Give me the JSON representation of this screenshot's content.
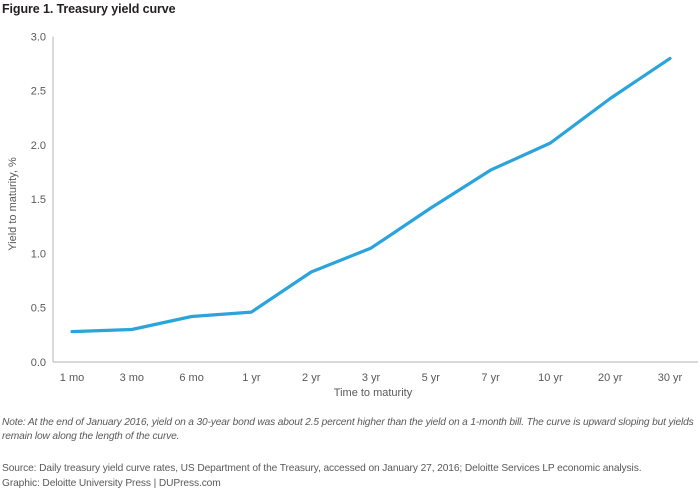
{
  "figure": {
    "title": "Figure 1. Treasury yield curve"
  },
  "chart_data": {
    "type": "line",
    "title": "Figure 1. Treasury yield curve",
    "categories": [
      "1 mo",
      "3 mo",
      "6 mo",
      "1 yr",
      "2 yr",
      "3 yr",
      "5 yr",
      "7 yr",
      "10 yr",
      "20 yr",
      "30 yr"
    ],
    "values": [
      0.28,
      0.3,
      0.42,
      0.46,
      0.83,
      1.05,
      1.42,
      1.77,
      2.02,
      2.43,
      2.8
    ],
    "series_name": "Treasury yield curve, end of January 2016",
    "xlabel": "Time to maturity",
    "ylabel": "Yield to maturity, %",
    "ylim": [
      0.0,
      3.0
    ],
    "yticks": [
      "0.0",
      "0.5",
      "1.0",
      "1.5",
      "2.0",
      "2.5",
      "3.0"
    ],
    "grid": false,
    "legend_position": "none",
    "line_color": "#2ba4dc",
    "axis_color": "#bfc1c3",
    "label_color": "#58595b"
  },
  "note": "Note: At the end of January 2016, yield on a 30-year bond was about 2.5 percent higher than the yield on a 1-month bill. The curve is upward sloping but yields remain low along the length of the curve.",
  "source": "Source: Daily treasury yield curve rates, US Department of the Treasury, accessed on January 27, 2016; Deloitte Services LP economic analysis.",
  "graphic": "Graphic: Deloitte University Press | DUPress.com"
}
